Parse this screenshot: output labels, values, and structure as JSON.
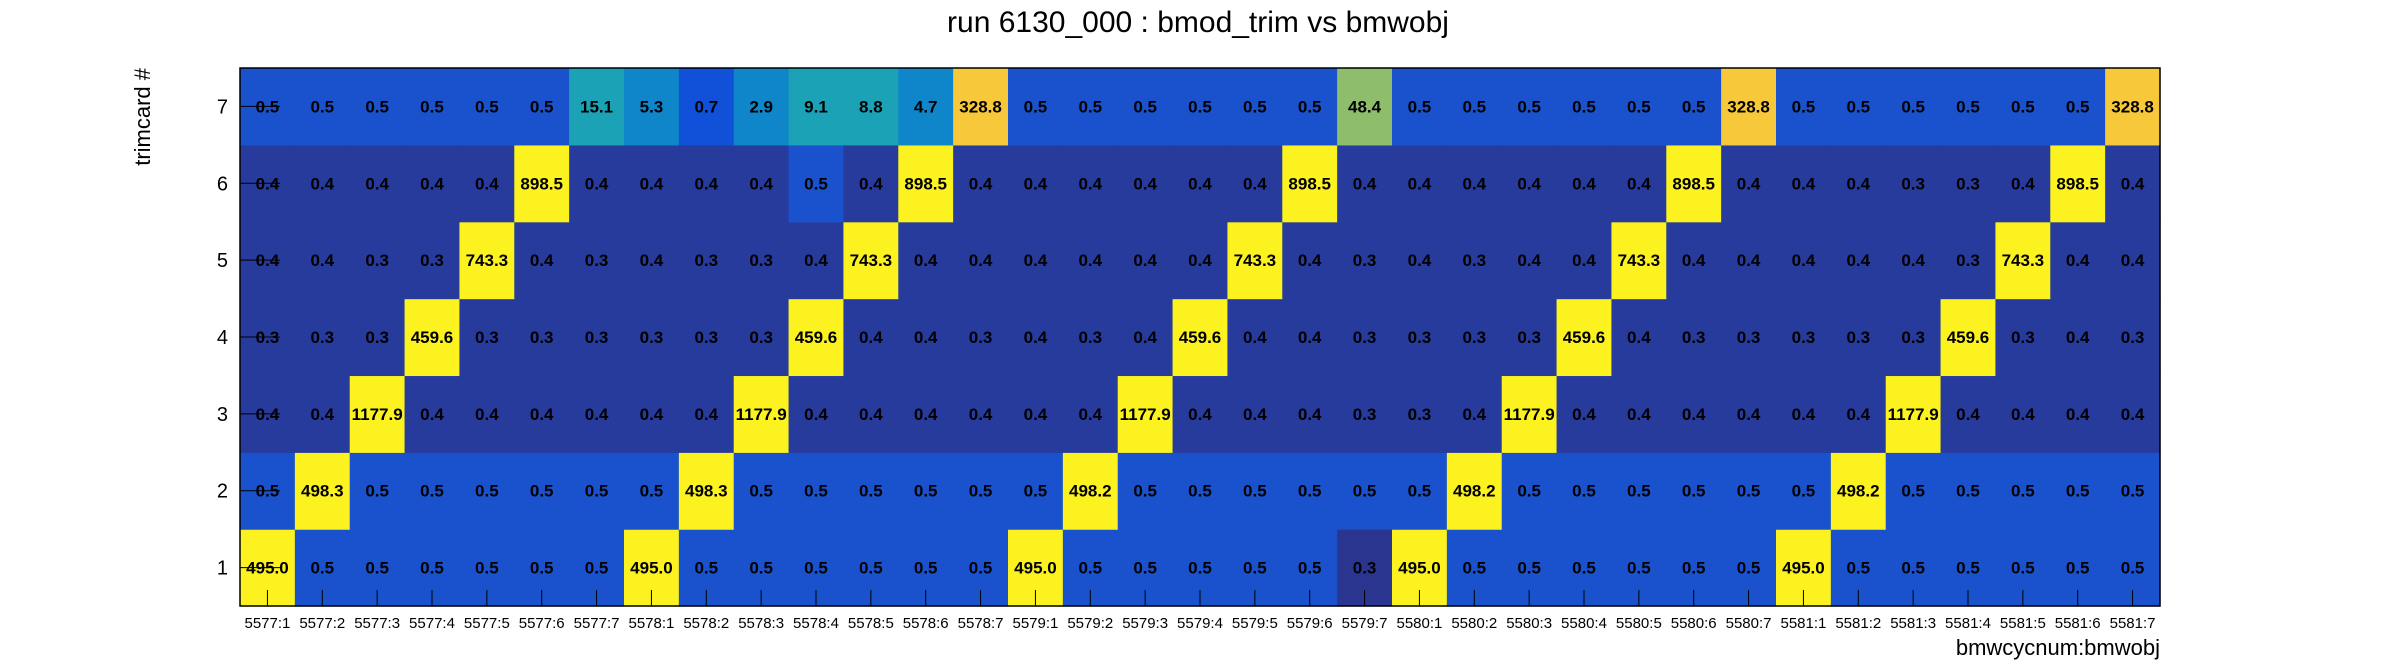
{
  "chart_data": {
    "type": "heatmap",
    "title": "run 6130_000 : bmod_trim vs bmwobj",
    "xlabel": "bmwcycnum:bmwobj",
    "ylabel": "trimcard #",
    "x_categories": [
      "5577:1",
      "5577:2",
      "5577:3",
      "5577:4",
      "5577:5",
      "5577:6",
      "5577:7",
      "5578:1",
      "5578:2",
      "5578:3",
      "5578:4",
      "5578:5",
      "5578:6",
      "5578:7",
      "5579:1",
      "5579:2",
      "5579:3",
      "5579:4",
      "5579:5",
      "5579:6",
      "5579:7",
      "5580:1",
      "5580:2",
      "5580:3",
      "5580:4",
      "5580:5",
      "5580:6",
      "5580:7",
      "5581:1",
      "5581:2",
      "5581:3",
      "5581:4",
      "5581:5",
      "5581:6",
      "5581:7"
    ],
    "y_categories": [
      "1",
      "2",
      "3",
      "4",
      "5",
      "6",
      "7"
    ],
    "rows": [
      {
        "y": "1",
        "values": [
          "495.0",
          "0.5",
          "0.5",
          "0.5",
          "0.5",
          "0.5",
          "0.5",
          "495.0",
          "0.5",
          "0.5",
          "0.5",
          "0.5",
          "0.5",
          "0.5",
          "495.0",
          "0.5",
          "0.5",
          "0.5",
          "0.5",
          "0.5",
          "0.3",
          "495.0",
          "0.5",
          "0.5",
          "0.5",
          "0.5",
          "0.5",
          "0.5",
          "495.0",
          "0.5",
          "0.5",
          "0.5",
          "0.5",
          "0.5",
          "0.5"
        ]
      },
      {
        "y": "2",
        "values": [
          "0.5",
          "498.3",
          "0.5",
          "0.5",
          "0.5",
          "0.5",
          "0.5",
          "0.5",
          "498.3",
          "0.5",
          "0.5",
          "0.5",
          "0.5",
          "0.5",
          "0.5",
          "498.2",
          "0.5",
          "0.5",
          "0.5",
          "0.5",
          "0.5",
          "0.5",
          "498.2",
          "0.5",
          "0.5",
          "0.5",
          "0.5",
          "0.5",
          "0.5",
          "498.2",
          "0.5",
          "0.5",
          "0.5",
          "0.5",
          "0.5"
        ]
      },
      {
        "y": "3",
        "values": [
          "0.4",
          "0.4",
          "1177.9",
          "0.4",
          "0.4",
          "0.4",
          "0.4",
          "0.4",
          "0.4",
          "1177.9",
          "0.4",
          "0.4",
          "0.4",
          "0.4",
          "0.4",
          "0.4",
          "1177.9",
          "0.4",
          "0.4",
          "0.4",
          "0.3",
          "0.3",
          "0.4",
          "1177.9",
          "0.4",
          "0.4",
          "0.4",
          "0.4",
          "0.4",
          "0.4",
          "1177.9",
          "0.4",
          "0.4",
          "0.4",
          "0.4"
        ]
      },
      {
        "y": "4",
        "values": [
          "0.3",
          "0.3",
          "0.3",
          "459.6",
          "0.3",
          "0.3",
          "0.3",
          "0.3",
          "0.3",
          "0.3",
          "459.6",
          "0.4",
          "0.4",
          "0.3",
          "0.4",
          "0.3",
          "0.4",
          "459.6",
          "0.4",
          "0.4",
          "0.3",
          "0.3",
          "0.3",
          "0.3",
          "459.6",
          "0.4",
          "0.3",
          "0.3",
          "0.3",
          "0.3",
          "0.3",
          "459.6",
          "0.3",
          "0.4",
          "0.3"
        ]
      },
      {
        "y": "5",
        "values": [
          "0.4",
          "0.4",
          "0.3",
          "0.3",
          "743.3",
          "0.4",
          "0.3",
          "0.4",
          "0.3",
          "0.3",
          "0.4",
          "743.3",
          "0.4",
          "0.4",
          "0.4",
          "0.4",
          "0.4",
          "0.4",
          "743.3",
          "0.4",
          "0.3",
          "0.4",
          "0.3",
          "0.4",
          "0.4",
          "743.3",
          "0.4",
          "0.4",
          "0.4",
          "0.4",
          "0.4",
          "0.3",
          "743.3",
          "0.4",
          "0.4"
        ]
      },
      {
        "y": "6",
        "values": [
          "0.4",
          "0.4",
          "0.4",
          "0.4",
          "0.4",
          "898.5",
          "0.4",
          "0.4",
          "0.4",
          "0.4",
          "0.5",
          "0.4",
          "898.5",
          "0.4",
          "0.4",
          "0.4",
          "0.4",
          "0.4",
          "0.4",
          "898.5",
          "0.4",
          "0.4",
          "0.4",
          "0.4",
          "0.4",
          "0.4",
          "898.5",
          "0.4",
          "0.4",
          "0.4",
          "0.3",
          "0.3",
          "0.4",
          "898.5",
          "0.4"
        ]
      },
      {
        "y": "7",
        "values": [
          "0.5",
          "0.5",
          "0.5",
          "0.5",
          "0.5",
          "0.5",
          "15.1",
          "5.3",
          "0.7",
          "2.9",
          "9.1",
          "8.8",
          "4.7",
          "328.8",
          "0.5",
          "0.5",
          "0.5",
          "0.5",
          "0.5",
          "0.5",
          "48.4",
          "0.5",
          "0.5",
          "0.5",
          "0.5",
          "0.5",
          "0.5",
          "328.8",
          "0.5",
          "0.5",
          "0.5",
          "0.5",
          "0.5",
          "0.5",
          "328.8"
        ]
      }
    ],
    "colors": {
      "very_low": "#273b9c",
      "low": "#1a52cd",
      "teal": "#1ba2b6",
      "teal_dark": "#0e86c9",
      "green": "#8ebd6c",
      "orange": "#f7c93a",
      "yellow": "#fbf21f"
    },
    "grid": false,
    "legend": "none"
  }
}
